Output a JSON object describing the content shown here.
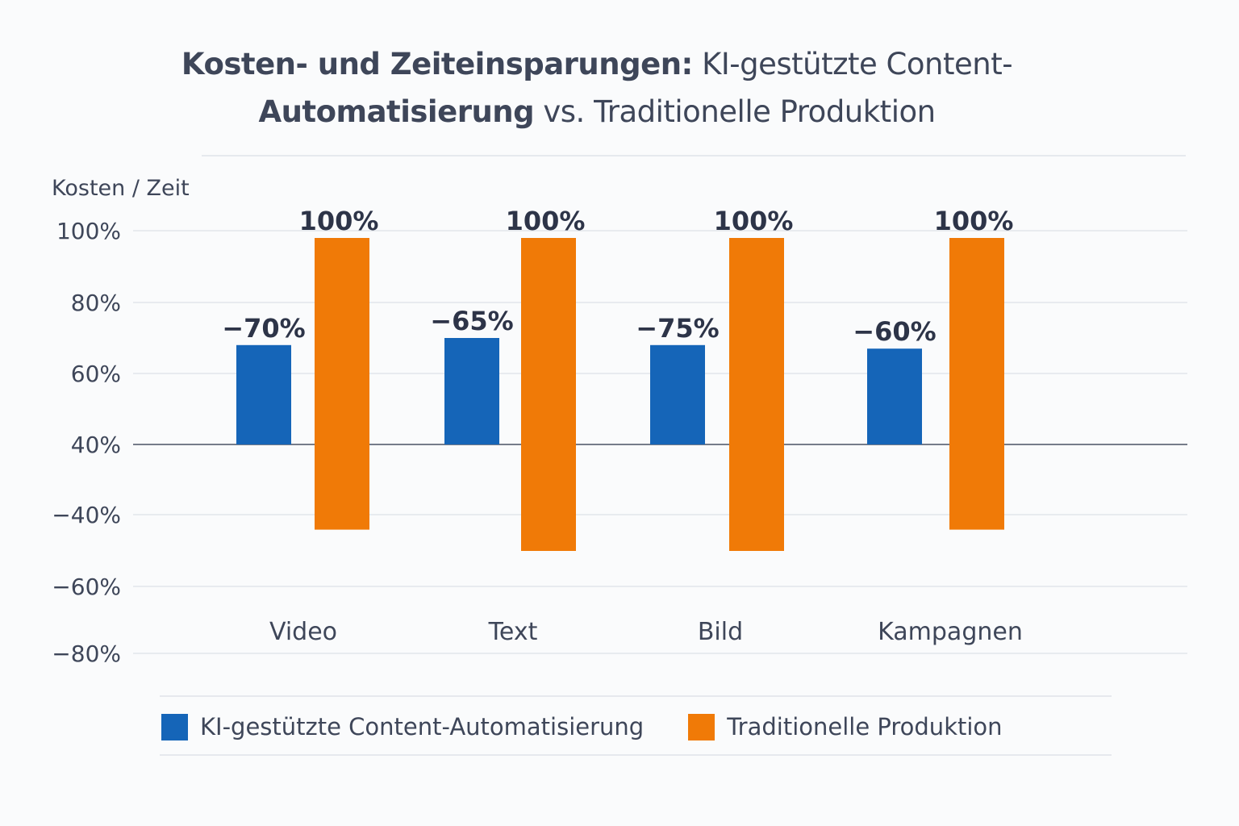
{
  "title": {
    "line1_bold": "Kosten- und Zeiteinsparungen:",
    "line1_rest": " KI-gestützte Content-",
    "line2_bold": "Automatisierung",
    "line2_rest": " vs. Traditionelle Produktion"
  },
  "chart_data": {
    "type": "bar",
    "title": "Kosten- und Zeiteinsparungen: KI-gestützte Content-Automatisierung vs. Traditionelle Produktion",
    "ylabel": "Kosten / Zeit",
    "xlabel": "",
    "y_tick_labels": [
      "100%",
      "80%",
      "60%",
      "40%",
      "−40%",
      "−60%",
      "−80%"
    ],
    "categories": [
      "Video",
      "Text",
      "Bild",
      "Kampagnen"
    ],
    "series": [
      {
        "name": "KI-gestützte Content-Automatisierung",
        "color": "#1565b8",
        "values": [
          68,
          70,
          68,
          67
        ],
        "data_labels": [
          "−70%",
          "−65%",
          "−75%",
          "−60%"
        ]
      },
      {
        "name": "Traditionelle Produktion",
        "color": "#f07a07",
        "values": [
          100,
          100,
          100,
          100
        ],
        "below_baseline": [
          -44,
          -50,
          -50,
          -44
        ],
        "data_labels": [
          "100%",
          "100%",
          "100%",
          "100%"
        ]
      }
    ],
    "grid": true,
    "legend_position": "bottom"
  }
}
